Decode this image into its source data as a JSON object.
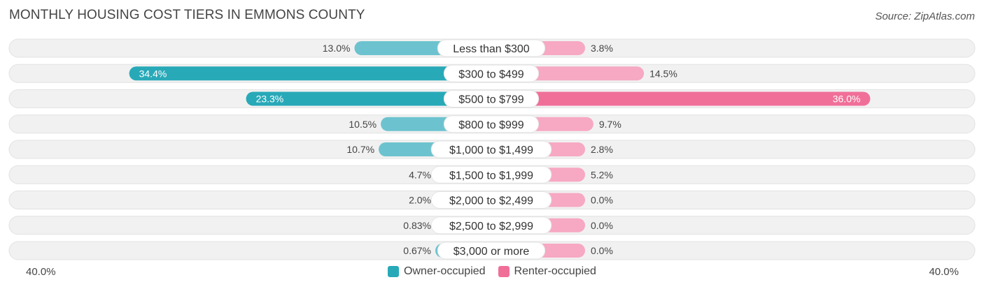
{
  "title": "MONTHLY HOUSING COST TIERS IN EMMONS COUNTY",
  "source": "Source: ZipAtlas.com",
  "axis": {
    "left_label": "40.0%",
    "right_label": "40.0%"
  },
  "legend": {
    "owner_label": "Owner-occupied",
    "renter_label": "Renter-occupied"
  },
  "colors": {
    "owner": "#6cc3cf",
    "owner_strong": "#28a9b8",
    "renter": "#f7a8c3",
    "renter_strong": "#f06f99",
    "track": "#f1f1f1"
  },
  "chart_data": {
    "type": "bar",
    "orientation": "horizontal-diverging",
    "xlim": [
      -40,
      40
    ],
    "categories": [
      "Less than $300",
      "$300 to $499",
      "$500 to $799",
      "$800 to $999",
      "$1,000 to $1,499",
      "$1,500 to $1,999",
      "$2,000 to $2,499",
      "$2,500 to $2,999",
      "$3,000 or more"
    ],
    "series": [
      {
        "name": "Owner-occupied",
        "side": "left",
        "values": [
          13.0,
          34.4,
          23.3,
          10.5,
          10.7,
          4.7,
          2.0,
          0.83,
          0.67
        ],
        "labels": [
          "13.0%",
          "34.4%",
          "23.3%",
          "10.5%",
          "10.7%",
          "4.7%",
          "2.0%",
          "0.83%",
          "0.67%"
        ]
      },
      {
        "name": "Renter-occupied",
        "side": "right",
        "values": [
          3.8,
          14.5,
          36.0,
          9.7,
          2.8,
          5.2,
          0.0,
          0.0,
          0.0
        ],
        "labels": [
          "3.8%",
          "14.5%",
          "36.0%",
          "9.7%",
          "2.8%",
          "5.2%",
          "0.0%",
          "0.0%",
          "0.0%"
        ]
      }
    ],
    "legend_position": "bottom-center"
  }
}
